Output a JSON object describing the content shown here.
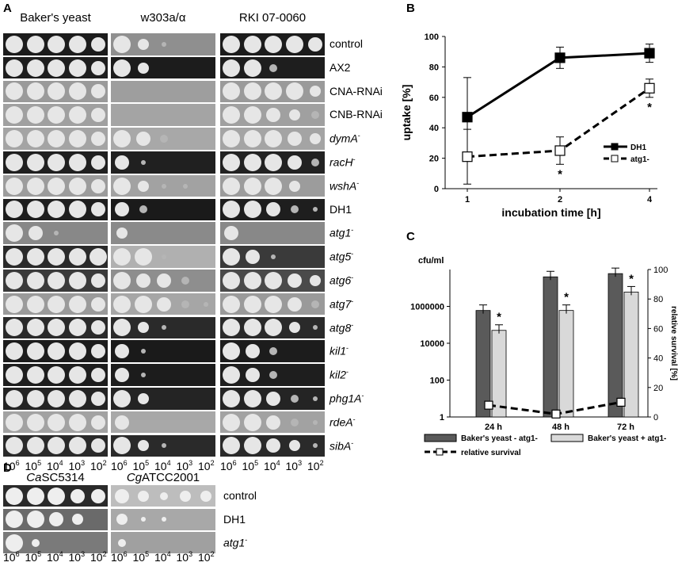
{
  "panelA": {
    "letter": "A",
    "columns": [
      "Baker's yeast",
      "w303a/α",
      "RKI 07-0060"
    ],
    "rows": [
      {
        "label": "control",
        "sup": "",
        "italic": false
      },
      {
        "label": "AX2",
        "sup": "",
        "italic": false
      },
      {
        "label": "CNA-RNAi",
        "sup": "",
        "italic": false
      },
      {
        "label": "CNB-RNAi",
        "sup": "",
        "italic": false
      },
      {
        "label": "dymA",
        "sup": "-",
        "italic": true
      },
      {
        "label": "racH",
        "sup": "-",
        "italic": true
      },
      {
        "label": "wshA",
        "sup": "-",
        "italic": true
      },
      {
        "label": "DH1",
        "sup": "",
        "italic": false
      },
      {
        "label": "atg1",
        "sup": "-",
        "italic": true
      },
      {
        "label": "atg5",
        "sup": "-",
        "italic": true
      },
      {
        "label": "atg6",
        "sup": "-",
        "italic": true
      },
      {
        "label": "atg7",
        "sup": "-",
        "italic": true
      },
      {
        "label": "atg8",
        "sup": "-",
        "italic": true
      },
      {
        "label": "kil1",
        "sup": "-",
        "italic": true
      },
      {
        "label": "kil2",
        "sup": "-",
        "italic": true
      },
      {
        "label": "phg1A",
        "sup": "-",
        "italic": true
      },
      {
        "label": "rdeA",
        "sup": "-",
        "italic": true
      },
      {
        "label": "sibA",
        "sup": "-",
        "italic": true
      }
    ],
    "dilutions": [
      {
        "base": "10",
        "exp": "6"
      },
      {
        "base": "10",
        "exp": "5"
      },
      {
        "base": "10",
        "exp": "4"
      },
      {
        "base": "10",
        "exp": "3"
      },
      {
        "base": "10",
        "exp": "2"
      }
    ]
  },
  "panelD": {
    "letter": "D",
    "columns": [
      {
        "italic": "Ca",
        "rest": "SC5314"
      },
      {
        "italic": "Cg",
        "rest": "ATCC2001"
      }
    ],
    "rows": [
      {
        "label": "control",
        "sup": "",
        "italic": false
      },
      {
        "label": "DH1",
        "sup": "",
        "italic": false
      },
      {
        "label": "atg1",
        "sup": "-",
        "italic": true
      }
    ]
  },
  "chart_data": [
    {
      "panel": "B",
      "type": "line",
      "categories": [
        "1",
        "2",
        "4"
      ],
      "xlabel": "incubation time [h]",
      "ylabel": "uptake [%]",
      "ylim": [
        0,
        100
      ],
      "yticks": [
        "0",
        "20",
        "40",
        "60",
        "80",
        "100"
      ],
      "series": [
        {
          "name": "DH1",
          "values": [
            47,
            86,
            89
          ],
          "errors": [
            26,
            7,
            6
          ],
          "style": "solid",
          "marker": "filled-square"
        },
        {
          "name": "atg1-",
          "values": [
            21,
            25,
            66
          ],
          "errors": [
            18,
            9,
            6
          ],
          "style": "dashed",
          "marker": "open-square"
        }
      ],
      "annotations": [
        {
          "category": "2",
          "text": "*"
        },
        {
          "category": "4",
          "text": "*"
        }
      ],
      "legend_position": "bottom-right"
    },
    {
      "panel": "C",
      "type": "bar",
      "categories": [
        "24 h",
        "48 h",
        "72 h"
      ],
      "left_axis": {
        "label": "cfu/ml",
        "scale": "log",
        "ticks": [
          "1",
          "100",
          "10000",
          "1000000"
        ]
      },
      "right_axis": {
        "label": "relative survival [%]",
        "ylim": [
          0,
          100
        ],
        "ticks": [
          "0",
          "20",
          "40",
          "60",
          "80",
          "100"
        ]
      },
      "series": [
        {
          "name": "Baker's yeast - atg1-",
          "type": "bar",
          "axis": "left",
          "color": "#5a5a5a",
          "values": [
            600000,
            40000000,
            60000000
          ]
        },
        {
          "name": "Baker's yeast + atg1-",
          "type": "bar",
          "axis": "left",
          "color": "#d9d9d9",
          "values": [
            50000,
            600000,
            6000000
          ]
        },
        {
          "name": "relative survival",
          "type": "line",
          "axis": "right",
          "style": "dashed",
          "marker": "open-square",
          "values": [
            8,
            2,
            10
          ]
        }
      ],
      "annotations": [
        {
          "category": "24 h",
          "text": "*"
        },
        {
          "category": "48 h",
          "text": "*"
        },
        {
          "category": "72 h",
          "text": "*"
        }
      ],
      "legend_position": "bottom"
    }
  ],
  "colors": {
    "plate_dark": "#141414",
    "plate_light": "#8a8a8a",
    "colony": "#e6e6e6"
  }
}
